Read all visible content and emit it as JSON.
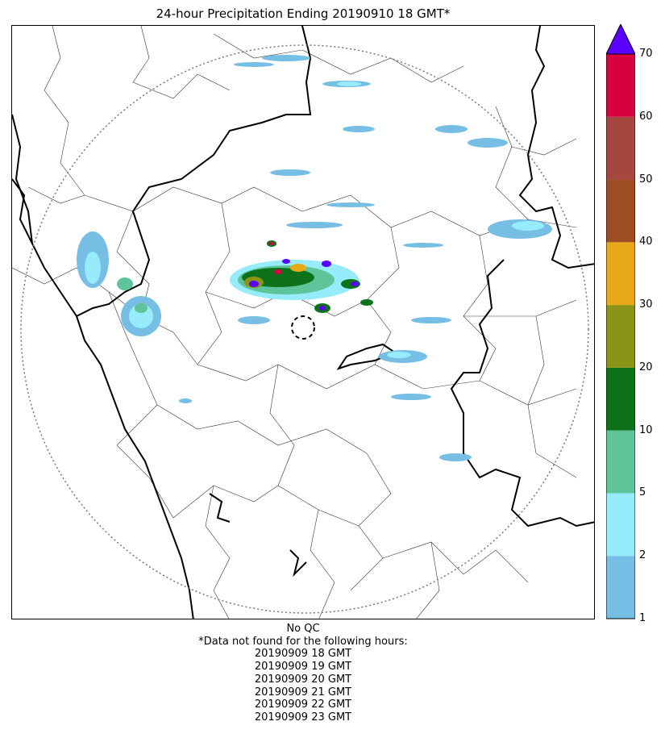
{
  "title": "24-hour Precipitation Ending 20190910 18 GMT*",
  "colorbar": {
    "bounds": [
      1,
      2,
      5,
      10,
      20,
      30,
      40,
      50,
      60,
      70
    ],
    "colors": [
      "#76bee3",
      "#96ecfb",
      "#5ec49a",
      "#0d7219",
      "#8b9318",
      "#e7a917",
      "#9d4e25",
      "#a54740",
      "#d80041"
    ],
    "extend_color": "#5a00ff",
    "tick_labels": [
      "1",
      "2",
      "5",
      "10",
      "20",
      "30",
      "40",
      "50",
      "60",
      "70"
    ]
  },
  "footer": {
    "qc": "No QC",
    "note": "*Data not found for the following hours:",
    "missing_hours": [
      "20190909 18 GMT",
      "20190909 19 GMT",
      "20190909 20 GMT",
      "20190909 21 GMT",
      "20190909 22 GMT",
      "20190909 23 GMT"
    ]
  }
}
